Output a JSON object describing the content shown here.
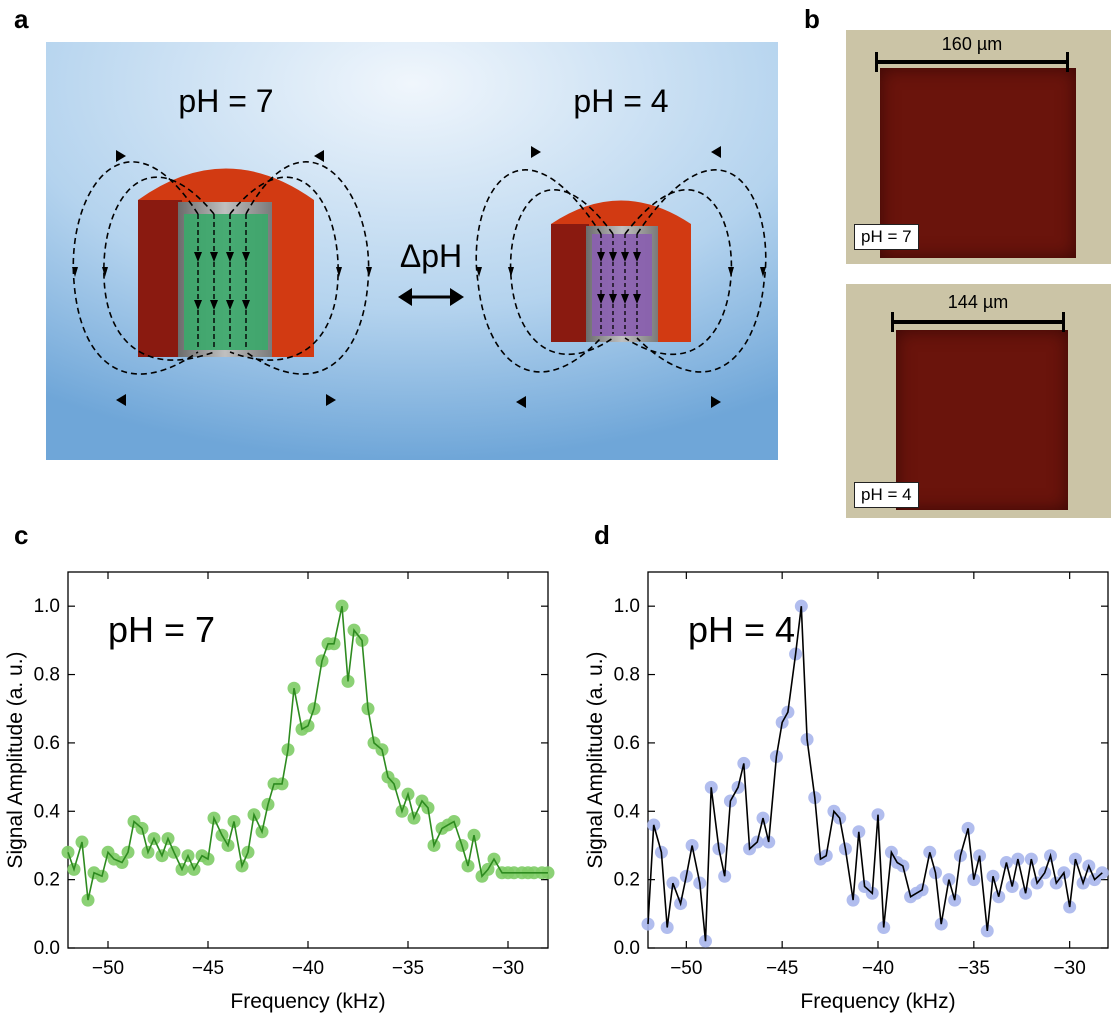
{
  "panel_labels": {
    "a": "a",
    "b": "b",
    "c": "c",
    "d": "d"
  },
  "schematic": {
    "left_label": "pH = 7",
    "right_label": "pH = 4",
    "delta_label": "ΔpH",
    "colors": {
      "background": "#9ec6ea",
      "magnet": "#d23a12",
      "magnet_dark": "#8a1a10",
      "core_ph7": "#3aa86a",
      "core_ph4": "#8a5fb0",
      "shell": "#8c8c8c"
    }
  },
  "micrographs": {
    "top": {
      "label": "pH = 7",
      "scale": "160 µm"
    },
    "bottom": {
      "label": "pH = 4",
      "scale": "144 µm"
    }
  },
  "chart_data": [
    {
      "type": "line",
      "panel": "c",
      "annotation": "pH = 7",
      "xlabel": "Frequency (kHz)",
      "ylabel": "Signal Amplitude (a. u.)",
      "xlim": [
        -52,
        -28
      ],
      "ylim": [
        0,
        1.1
      ],
      "xticks": [
        -50,
        -45,
        -40,
        -35,
        -30
      ],
      "yticks": [
        0.0,
        0.2,
        0.4,
        0.6,
        0.8,
        1.0
      ],
      "color": "#2e8b20",
      "marker_color": "#7ecc66",
      "x": [
        -52.0,
        -51.7,
        -51.3,
        -51.0,
        -50.7,
        -50.3,
        -50.0,
        -49.7,
        -49.3,
        -49.0,
        -48.7,
        -48.3,
        -48.0,
        -47.7,
        -47.3,
        -47.0,
        -46.7,
        -46.3,
        -46.0,
        -45.7,
        -45.3,
        -45.0,
        -44.7,
        -44.3,
        -44.0,
        -43.7,
        -43.3,
        -43.0,
        -42.7,
        -42.3,
        -42.0,
        -41.7,
        -41.3,
        -41.0,
        -40.7,
        -40.3,
        -40.0,
        -39.7,
        -39.3,
        -39.0,
        -38.7,
        -38.3,
        -38.0,
        -37.7,
        -37.3,
        -37.0,
        -36.7,
        -36.3,
        -36.0,
        -35.7,
        -35.3,
        -35.0,
        -34.7,
        -34.3,
        -34.0,
        -33.7,
        -33.3,
        -33.0,
        -32.7,
        -32.3,
        -32.0,
        -31.7,
        -31.3,
        -31.0,
        -30.7,
        -30.3,
        -30.0,
        -29.7,
        -29.3,
        -29.0,
        -28.7,
        -28.3,
        -28.0
      ],
      "y": [
        0.28,
        0.23,
        0.31,
        0.14,
        0.22,
        0.21,
        0.28,
        0.26,
        0.25,
        0.28,
        0.37,
        0.35,
        0.28,
        0.32,
        0.27,
        0.32,
        0.28,
        0.23,
        0.27,
        0.23,
        0.27,
        0.26,
        0.38,
        0.33,
        0.3,
        0.37,
        0.24,
        0.28,
        0.39,
        0.34,
        0.42,
        0.48,
        0.48,
        0.58,
        0.76,
        0.64,
        0.65,
        0.7,
        0.84,
        0.89,
        0.89,
        1.0,
        0.78,
        0.93,
        0.9,
        0.7,
        0.6,
        0.58,
        0.5,
        0.48,
        0.4,
        0.45,
        0.38,
        0.43,
        0.41,
        0.3,
        0.35,
        0.36,
        0.37,
        0.3,
        0.24,
        0.33,
        0.21,
        0.23,
        0.26,
        0.22,
        0.22,
        0.22,
        0.22,
        0.22,
        0.22,
        0.22,
        0.22
      ]
    },
    {
      "type": "line",
      "panel": "d",
      "annotation": "pH = 4",
      "xlabel": "Frequency (kHz)",
      "ylabel": "Signal Amplitude (a. u.)",
      "xlim": [
        -52,
        -28
      ],
      "ylim": [
        0,
        1.1
      ],
      "xticks": [
        -50,
        -45,
        -40,
        -35,
        -30
      ],
      "yticks": [
        0.0,
        0.2,
        0.4,
        0.6,
        0.8,
        1.0
      ],
      "color": "#000000",
      "marker_color": "#a9b6ec",
      "x": [
        -52.0,
        -51.7,
        -51.3,
        -51.0,
        -50.7,
        -50.3,
        -50.0,
        -49.7,
        -49.3,
        -49.0,
        -48.7,
        -48.3,
        -48.0,
        -47.7,
        -47.3,
        -47.0,
        -46.7,
        -46.3,
        -46.0,
        -45.7,
        -45.3,
        -45.0,
        -44.7,
        -44.3,
        -44.0,
        -43.7,
        -43.3,
        -43.0,
        -42.7,
        -42.3,
        -42.0,
        -41.7,
        -41.3,
        -41.0,
        -40.7,
        -40.3,
        -40.0,
        -39.7,
        -39.3,
        -39.0,
        -38.7,
        -38.3,
        -38.0,
        -37.7,
        -37.3,
        -37.0,
        -36.7,
        -36.3,
        -36.0,
        -35.7,
        -35.3,
        -35.0,
        -34.7,
        -34.3,
        -34.0,
        -33.7,
        -33.3,
        -33.0,
        -32.7,
        -32.3,
        -32.0,
        -31.7,
        -31.3,
        -31.0,
        -30.7,
        -30.3,
        -30.0,
        -29.7,
        -29.3,
        -29.0,
        -28.7,
        -28.3
      ],
      "y": [
        0.07,
        0.36,
        0.28,
        0.06,
        0.19,
        0.13,
        0.21,
        0.3,
        0.19,
        0.02,
        0.47,
        0.29,
        0.21,
        0.43,
        0.47,
        0.54,
        0.29,
        0.31,
        0.38,
        0.31,
        0.56,
        0.66,
        0.69,
        0.86,
        1.0,
        0.61,
        0.44,
        0.26,
        0.27,
        0.4,
        0.38,
        0.29,
        0.14,
        0.34,
        0.18,
        0.16,
        0.39,
        0.06,
        0.28,
        0.25,
        0.24,
        0.15,
        0.16,
        0.17,
        0.28,
        0.22,
        0.07,
        0.2,
        0.14,
        0.27,
        0.35,
        0.2,
        0.27,
        0.05,
        0.21,
        0.15,
        0.25,
        0.18,
        0.26,
        0.16,
        0.26,
        0.19,
        0.22,
        0.27,
        0.19,
        0.22,
        0.12,
        0.26,
        0.19,
        0.24,
        0.2,
        0.22
      ]
    }
  ]
}
